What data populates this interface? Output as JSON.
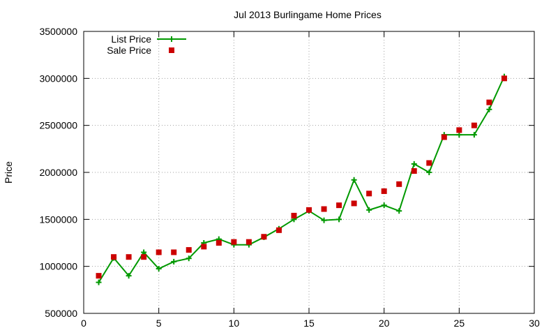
{
  "chart_data": {
    "type": "line",
    "title": "Jul 2013 Burlingame Home Prices",
    "xlabel": "",
    "ylabel": "Price",
    "xlim": [
      0,
      30
    ],
    "ylim": [
      500000,
      3500000
    ],
    "xticks": [
      0,
      5,
      10,
      15,
      20,
      25,
      30
    ],
    "yticks": [
      500000,
      1000000,
      1500000,
      2000000,
      2500000,
      3000000,
      3500000
    ],
    "grid": true,
    "legend_position": "top-left",
    "series": [
      {
        "name": "List Price",
        "style": "line-plus",
        "color": "#009900",
        "x": [
          1,
          2,
          3,
          4,
          5,
          6,
          7,
          8,
          9,
          10,
          11,
          12,
          13,
          14,
          15,
          16,
          17,
          18,
          19,
          20,
          21,
          22,
          23,
          24,
          25,
          26,
          27,
          28
        ],
        "values": [
          830000,
          1090000,
          900000,
          1150000,
          975000,
          1050000,
          1085000,
          1250000,
          1290000,
          1230000,
          1230000,
          1310000,
          1400000,
          1500000,
          1590000,
          1490000,
          1500000,
          1920000,
          1600000,
          1650000,
          1590000,
          2090000,
          2000000,
          2400000,
          2400000,
          2400000,
          2670000,
          3020000
        ]
      },
      {
        "name": "Sale Price",
        "style": "square",
        "color": "#cc0000",
        "x": [
          1,
          2,
          3,
          4,
          5,
          6,
          7,
          8,
          9,
          10,
          11,
          12,
          13,
          14,
          15,
          16,
          17,
          18,
          19,
          20,
          21,
          22,
          23,
          24,
          25,
          26,
          27,
          28
        ],
        "values": [
          900000,
          1100000,
          1100000,
          1100000,
          1150000,
          1150000,
          1175000,
          1210000,
          1250000,
          1260000,
          1260000,
          1315000,
          1385000,
          1540000,
          1600000,
          1610000,
          1650000,
          1670000,
          1775000,
          1800000,
          1875000,
          2015000,
          2100000,
          2375000,
          2450000,
          2500000,
          2745000,
          3000000
        ]
      }
    ]
  }
}
